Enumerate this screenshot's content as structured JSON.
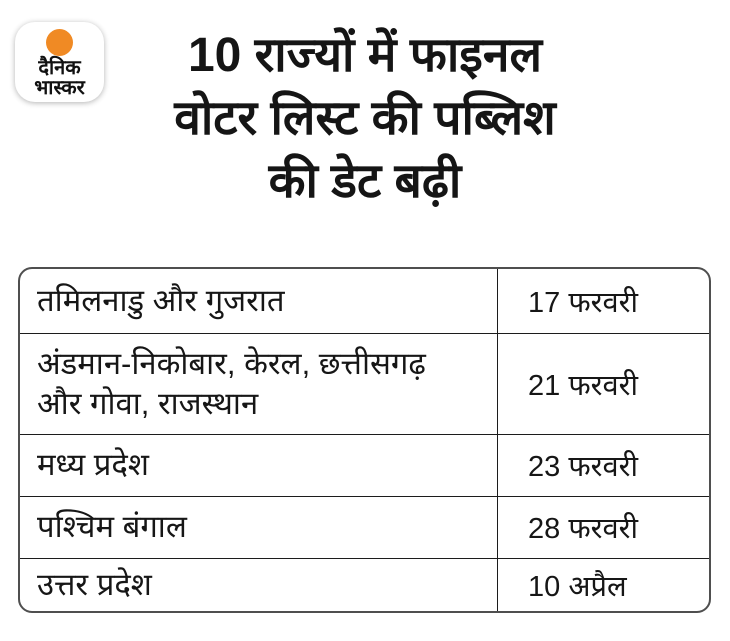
{
  "logo": {
    "brand_line1": "दैनिक",
    "brand_line2": "भास्कर"
  },
  "title": {
    "lines": [
      "10 राज्यों में फाइनल",
      "वोटर लिस्ट की पब्लिश",
      "की डेट बढ़ी"
    ]
  },
  "table": {
    "rows": [
      {
        "states": "तमिलनाडु और गुजरात",
        "date": "17 फरवरी"
      },
      {
        "states": "अंडमान-निकोबार, केरल, छत्तीसगढ़ और गोवा, राजस्थान",
        "date": "21 फरवरी"
      },
      {
        "states": "मध्य प्रदेश",
        "date": "23 फरवरी"
      },
      {
        "states": "पश्चिम बंगाल",
        "date": "28 फरवरी"
      },
      {
        "states": "उत्तर प्रदेश",
        "date": "10 अप्रैल"
      }
    ]
  },
  "colors": {
    "accent_orange": "#F08A24",
    "text": "#151515",
    "table_border": "#4f4f4f"
  },
  "chart_data": {
    "type": "table",
    "title": "10 राज्यों में फाइनल वोटर लिस्ट की पब्लिश की डेट बढ़ी",
    "rows": [
      [
        "तमिलनाडु और गुजरात",
        "17 फरवरी"
      ],
      [
        "अंडमान-निकोबार, केरल, छत्तीसगढ़ और गोवा, राजस्थान",
        "21 फरवरी"
      ],
      [
        "मध्य प्रदेश",
        "23 फरवरी"
      ],
      [
        "पश्चिम बंगाल",
        "28 फरवरी"
      ],
      [
        "उत्तर प्रदेश",
        "10 अप्रैल"
      ]
    ],
    "layout": "two-column table, no header row, grid lines on, rounded outer border"
  }
}
